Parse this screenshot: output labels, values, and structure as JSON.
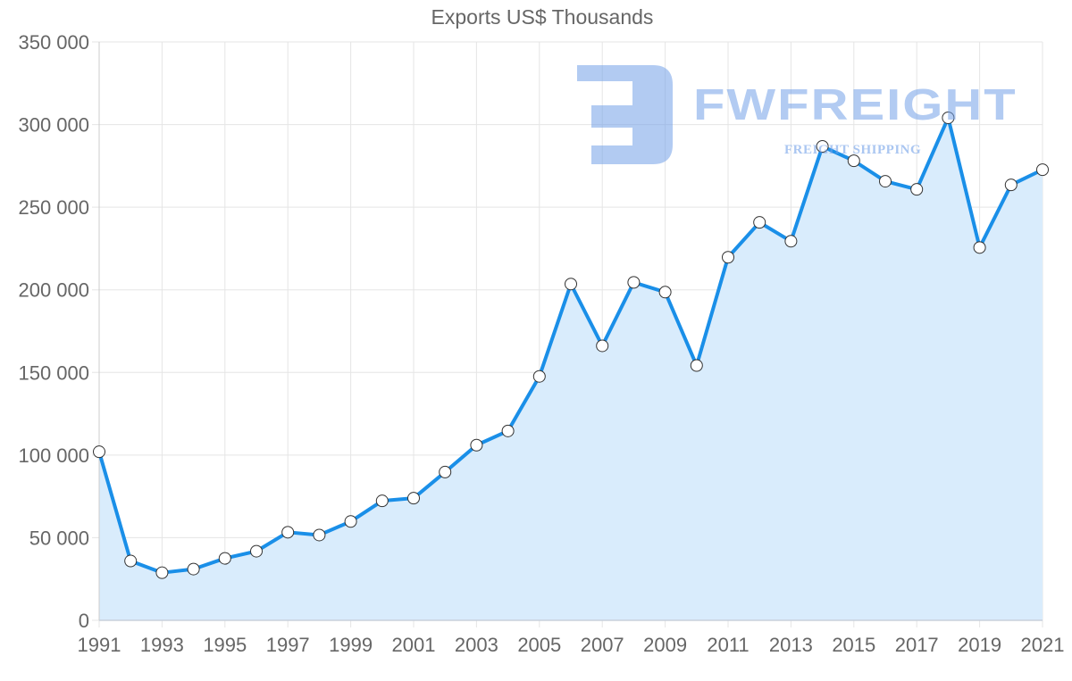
{
  "chart_data": {
    "type": "area",
    "title": "Exports US$ Thousands",
    "xlabel": "",
    "ylabel": "",
    "x": [
      1991,
      1992,
      1993,
      1994,
      1995,
      1996,
      1997,
      1998,
      1999,
      2000,
      2001,
      2002,
      2003,
      2004,
      2005,
      2006,
      2007,
      2008,
      2009,
      2010,
      2011,
      2012,
      2013,
      2014,
      2015,
      2016,
      2017,
      2018,
      2019,
      2020,
      2021
    ],
    "series": [
      {
        "name": "Exports US$ Thousands",
        "values": [
          102000,
          35900,
          28800,
          31000,
          37500,
          41800,
          53300,
          51600,
          59800,
          72300,
          73900,
          89700,
          106000,
          114600,
          147600,
          203500,
          166100,
          204500,
          198600,
          154200,
          219700,
          240800,
          229400,
          286800,
          278100,
          265700,
          260800,
          304100,
          225600,
          263500,
          272700
        ],
        "line_color": "#1a8fe8",
        "fill_color": "#d9ecfc",
        "marker_fill": "#ffffff",
        "marker_stroke": "#333333"
      }
    ],
    "xlim": [
      1991,
      2021
    ],
    "ylim": [
      0,
      350000
    ],
    "x_ticks": [
      "1991",
      "1993",
      "1995",
      "1997",
      "1999",
      "2001",
      "2003",
      "2005",
      "2007",
      "2009",
      "2011",
      "2013",
      "2015",
      "2017",
      "2019",
      "2021"
    ],
    "y_ticks": [
      "0",
      "50 000",
      "100 000",
      "150 000",
      "200 000",
      "250 000",
      "300 000",
      "350 000"
    ],
    "y_tick_values": [
      0,
      50000,
      100000,
      150000,
      200000,
      250000,
      300000,
      350000
    ],
    "grid": true,
    "legend": "none"
  },
  "watermark": {
    "brand": "FWFREIGHT",
    "tagline": "FREIGHT SHIPPING",
    "icon": "fwfreight-logo-icon"
  },
  "colors": {
    "grid": "#e5e5e5",
    "axis": "#cccccc",
    "text": "#666666",
    "watermark": "#72a0e8"
  }
}
